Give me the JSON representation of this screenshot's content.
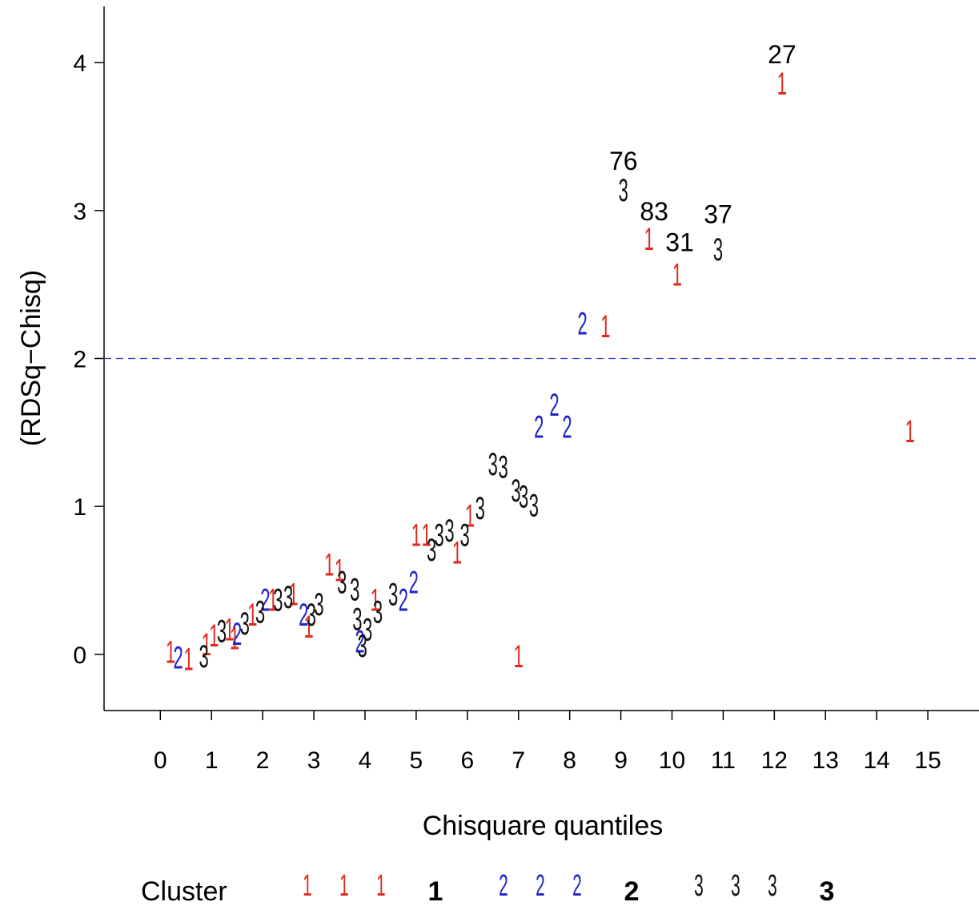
{
  "chart_data": {
    "type": "scatter",
    "title": "",
    "xlabel": "Chisquare quantiles",
    "ylabel": "(RDSq−Chisq)",
    "xlim": [
      -1.1,
      16.0
    ],
    "ylim": [
      -0.38,
      4.38
    ],
    "xticks": [
      "0",
      "1",
      "2",
      "3",
      "4",
      "5",
      "6",
      "7",
      "8",
      "9",
      "10",
      "11",
      "12",
      "13",
      "14",
      "15"
    ],
    "yticks": [
      "0",
      "1",
      "2",
      "3",
      "4"
    ],
    "grid": false,
    "reference_line": {
      "y": 2,
      "style": "dashed",
      "color": "#3333cc"
    },
    "series": [
      {
        "name": "1",
        "marker": "1",
        "color": "#e0281e",
        "points": [
          [
            0.2,
            0.03
          ],
          [
            0.55,
            -0.02
          ],
          [
            0.9,
            0.08
          ],
          [
            1.05,
            0.14
          ],
          [
            1.35,
            0.18
          ],
          [
            1.45,
            0.12
          ],
          [
            1.8,
            0.28
          ],
          [
            2.2,
            0.38
          ],
          [
            2.6,
            0.42
          ],
          [
            2.9,
            0.2
          ],
          [
            3.3,
            0.62
          ],
          [
            3.5,
            0.58
          ],
          [
            4.2,
            0.38
          ],
          [
            5.0,
            0.82
          ],
          [
            5.2,
            0.82
          ],
          [
            5.8,
            0.7
          ],
          [
            6.05,
            0.95
          ],
          [
            7.0,
            0.0
          ],
          [
            8.7,
            2.23
          ],
          [
            9.55,
            2.82
          ],
          [
            10.1,
            2.58
          ],
          [
            12.15,
            3.87
          ],
          [
            14.65,
            1.52
          ]
        ]
      },
      {
        "name": "2",
        "marker": "2",
        "color": "#2222cc",
        "points": [
          [
            0.35,
            -0.01
          ],
          [
            1.5,
            0.15
          ],
          [
            2.05,
            0.38
          ],
          [
            2.8,
            0.28
          ],
          [
            3.9,
            0.1
          ],
          [
            4.75,
            0.38
          ],
          [
            4.95,
            0.5
          ],
          [
            7.4,
            1.55
          ],
          [
            7.7,
            1.7
          ],
          [
            7.95,
            1.55
          ],
          [
            8.25,
            2.25
          ]
        ]
      },
      {
        "name": "3",
        "marker": "3",
        "color": "#111111",
        "points": [
          [
            0.85,
            0.0
          ],
          [
            1.2,
            0.17
          ],
          [
            1.65,
            0.22
          ],
          [
            1.95,
            0.3
          ],
          [
            2.3,
            0.38
          ],
          [
            2.5,
            0.4
          ],
          [
            2.95,
            0.28
          ],
          [
            3.1,
            0.35
          ],
          [
            3.55,
            0.5
          ],
          [
            3.8,
            0.45
          ],
          [
            3.85,
            0.25
          ],
          [
            3.95,
            0.07
          ],
          [
            4.05,
            0.18
          ],
          [
            4.25,
            0.3
          ],
          [
            4.55,
            0.42
          ],
          [
            5.3,
            0.72
          ],
          [
            5.45,
            0.82
          ],
          [
            5.65,
            0.85
          ],
          [
            5.95,
            0.82
          ],
          [
            6.25,
            1.0
          ],
          [
            6.5,
            1.3
          ],
          [
            6.7,
            1.28
          ],
          [
            6.95,
            1.12
          ],
          [
            7.1,
            1.08
          ],
          [
            7.3,
            1.02
          ],
          [
            9.05,
            3.15
          ],
          [
            10.9,
            2.75
          ]
        ]
      }
    ],
    "annotations": [
      {
        "text": "27",
        "x": 12.15,
        "y": 4.06
      },
      {
        "text": "76",
        "x": 9.05,
        "y": 3.34
      },
      {
        "text": "83",
        "x": 9.65,
        "y": 3.0
      },
      {
        "text": "37",
        "x": 10.9,
        "y": 2.98
      },
      {
        "text": "31",
        "x": 10.15,
        "y": 2.79
      }
    ],
    "legend": {
      "title": "Cluster",
      "placement": "bottom",
      "entries": [
        {
          "label": "1",
          "symbol": "1",
          "color": "#e0281e"
        },
        {
          "label": "2",
          "symbol": "2",
          "color": "#2222cc"
        },
        {
          "label": "3",
          "symbol": "3",
          "color": "#111111"
        }
      ]
    }
  }
}
